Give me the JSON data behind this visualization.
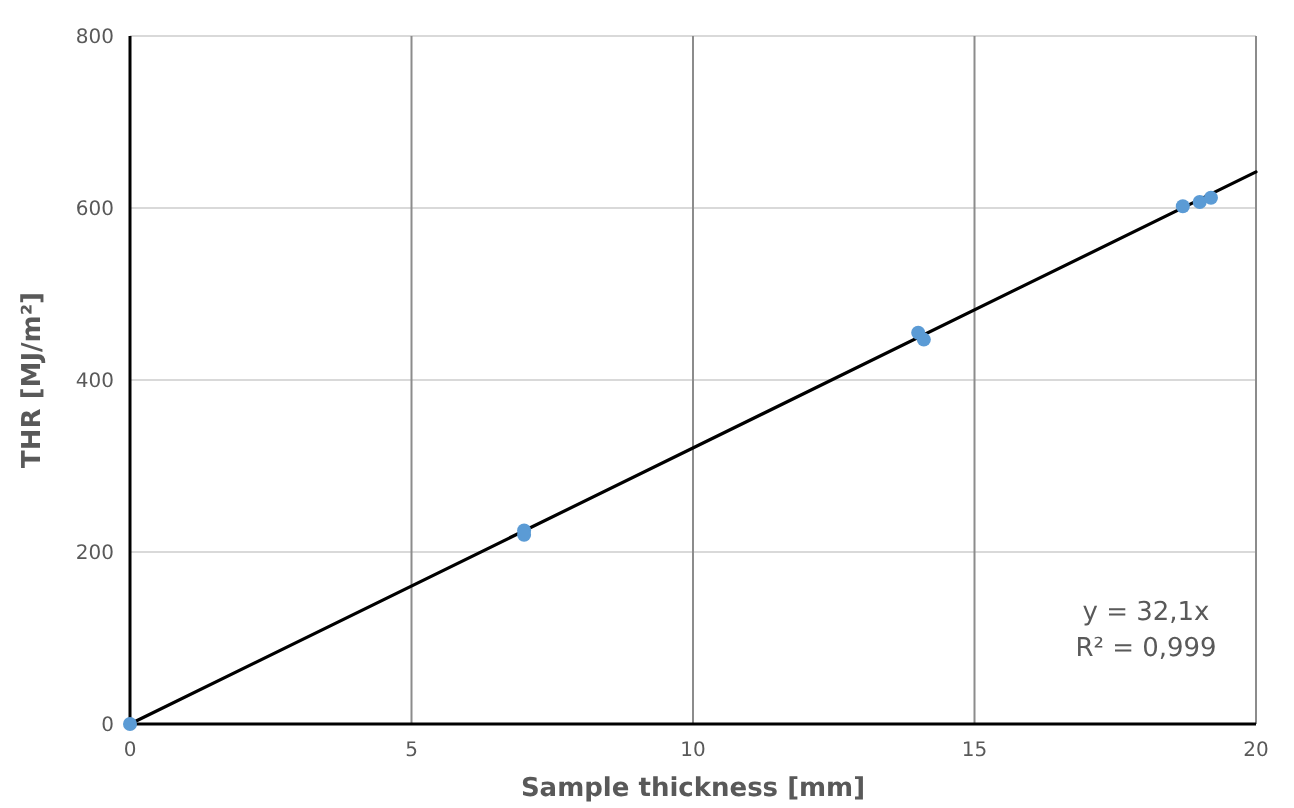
{
  "chart_data": {
    "type": "scatter",
    "xlabel": "Sample thickness [mm]",
    "ylabel": "THR [MJ/m²]",
    "xlim": [
      0,
      20
    ],
    "ylim": [
      0,
      800
    ],
    "xticks": [
      0,
      5,
      10,
      15,
      20
    ],
    "yticks": [
      0,
      200,
      400,
      600,
      800
    ],
    "grid": true,
    "series": [
      {
        "color": "#5b9bd5",
        "marker": "circle",
        "x": [
          0,
          7,
          7,
          14,
          14.1,
          18.7,
          19,
          19.2
        ],
        "values": [
          0,
          225,
          220,
          455,
          447,
          602,
          607,
          612
        ]
      },
      {
        "type": "line",
        "marker": "none",
        "color": "#000000",
        "x": [
          0,
          20
        ],
        "values": [
          0,
          642
        ]
      }
    ],
    "annotations": [
      "y = 32,1x",
      "R² = 0,999"
    ]
  }
}
